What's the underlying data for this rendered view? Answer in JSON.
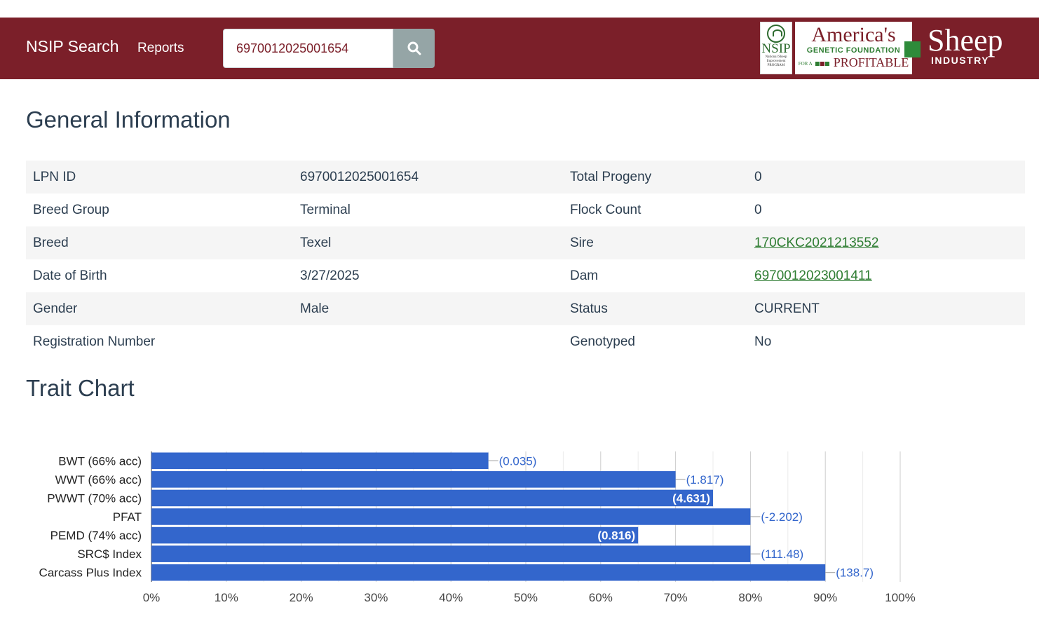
{
  "navbar": {
    "brand": "NSIP Search",
    "reports_label": "Reports",
    "search_value": "6970012025001654",
    "logos": {
      "nsip_word": "NSIP",
      "nsip_tagline": "National Sheep Improvement PROGRAM",
      "agf_line1": "America's",
      "agf_line2": "GENETIC FOUNDATION",
      "agf_line3_prefix": "FOR A",
      "agf_line3": "PROFITABLE",
      "sheep_line1": "Sheep",
      "sheep_line2": "INDUSTRY"
    }
  },
  "general": {
    "title": "General Information",
    "rows": [
      {
        "label1": "LPN ID",
        "value1": "6970012025001654",
        "label2": "Total Progeny",
        "value2": "0"
      },
      {
        "label1": "Breed Group",
        "value1": "Terminal",
        "label2": "Flock Count",
        "value2": "0"
      },
      {
        "label1": "Breed",
        "value1": "Texel",
        "label2": "Sire",
        "value2": "170CKC2021213552"
      },
      {
        "label1": "Date of Birth",
        "value1": "3/27/2025",
        "label2": "Dam",
        "value2": "6970012023001411"
      },
      {
        "label1": "Gender",
        "value1": "Male",
        "label2": "Status",
        "value2": "CURRENT"
      },
      {
        "label1": "Registration Number",
        "value1": "",
        "label2": "Genotyped",
        "value2": "No"
      }
    ]
  },
  "trait": {
    "title": "Trait Chart"
  },
  "colors": {
    "nav_bg": "#7b1f29",
    "bar": "#3366cc",
    "link": "#2e7d32"
  },
  "chart_data": {
    "type": "bar",
    "orientation": "horizontal",
    "categories": [
      "BWT (66% acc)",
      "WWT (66% acc)",
      "PWWT (70% acc)",
      "PFAT",
      "PEMD (74% acc)",
      "SRC$ Index",
      "Carcass Plus Index"
    ],
    "values": [
      45,
      70,
      75,
      80,
      65,
      80,
      90
    ],
    "data_labels": [
      "(0.035)",
      "(1.817)",
      "(4.631)",
      "(-2.202)",
      "(0.816)",
      "(111.48)",
      "(138.7)"
    ],
    "label_inside": [
      false,
      false,
      true,
      false,
      true,
      false,
      false
    ],
    "xlim": [
      0,
      100
    ],
    "xticks": [
      0,
      10,
      20,
      30,
      40,
      50,
      60,
      70,
      80,
      90,
      100
    ],
    "xtick_labels": [
      "0%",
      "10%",
      "20%",
      "30%",
      "40%",
      "50%",
      "60%",
      "70%",
      "80%",
      "90%",
      "100%"
    ],
    "minor_grid": true,
    "title": "",
    "xlabel": "",
    "ylabel": ""
  }
}
